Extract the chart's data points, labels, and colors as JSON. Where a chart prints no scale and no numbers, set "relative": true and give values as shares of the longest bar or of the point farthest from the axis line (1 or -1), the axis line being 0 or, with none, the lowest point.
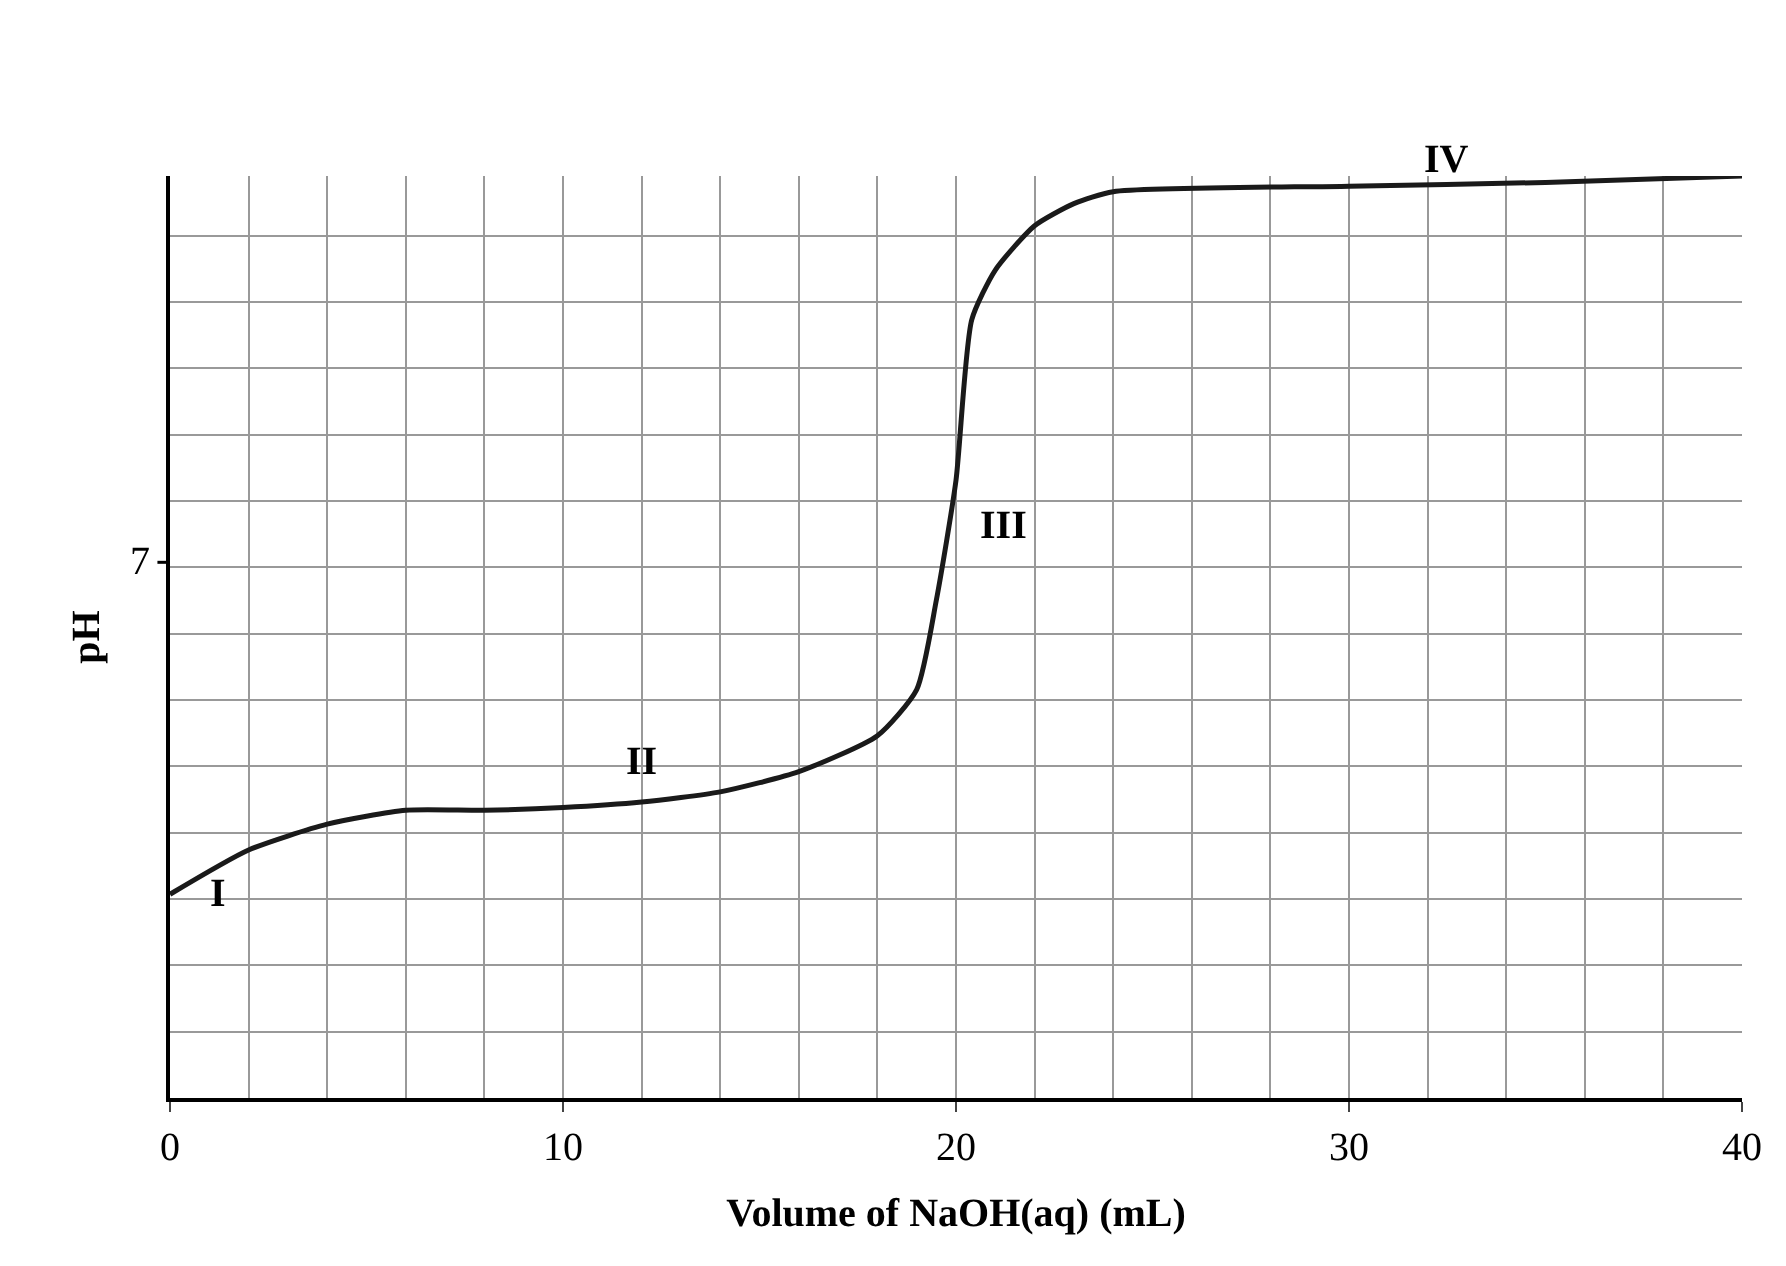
{
  "chart_data": {
    "type": "line",
    "xlabel": "Volume of NaOH(aq) (mL)",
    "ylabel": "pH",
    "relative": true,
    "x": [
      0,
      2,
      4,
      6,
      8,
      10,
      12,
      14,
      16,
      18,
      19,
      19.5,
      20,
      20.4,
      21,
      22,
      23,
      24,
      30,
      35,
      40
    ],
    "series": [
      {
        "color": "#1a1a1a",
        "values": [
          0.221,
          0.269,
          0.297,
          0.312,
          0.312,
          0.315,
          0.321,
          0.332,
          0.354,
          0.393,
          0.443,
          0.54,
          0.67,
          0.844,
          0.898,
          0.946,
          0.97,
          0.983,
          0.989,
          0.993,
          1.0
        ]
      }
    ],
    "xlim": [
      0,
      40
    ],
    "xticks": [
      0,
      10,
      20,
      30,
      40
    ],
    "grid": true,
    "marker": "none",
    "line_style": "solid",
    "annotations": [
      "7",
      "I",
      "II",
      "III",
      "IV"
    ]
  }
}
